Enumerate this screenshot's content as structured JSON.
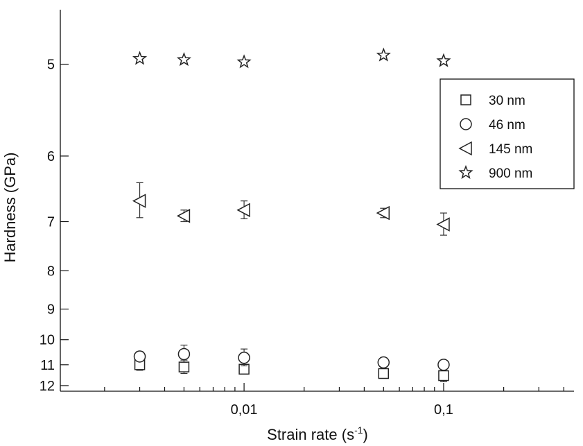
{
  "chart_data": {
    "type": "scatter",
    "title": "",
    "xlabel": {
      "base": "Strain rate (s",
      "sup": "-1",
      "close": ")"
    },
    "ylabel": "Hardness (GPa)",
    "x_scale": "log",
    "y_scale": "reciprocal",
    "xlim": [
      0.0012,
      0.45
    ],
    "ylim": [
      4.55,
      12.3
    ],
    "x_major_ticks": [
      {
        "value": 0.01,
        "label": "0,01"
      },
      {
        "value": 0.1,
        "label": "0,1"
      }
    ],
    "x_minor_ticks": [
      0.002,
      0.003,
      0.004,
      0.005,
      0.006,
      0.007,
      0.008,
      0.009,
      0.02,
      0.03,
      0.04,
      0.05,
      0.06,
      0.07,
      0.08,
      0.09,
      0.2,
      0.3,
      0.4
    ],
    "y_ticks": [
      {
        "value": 5,
        "label": "5"
      },
      {
        "value": 6,
        "label": "6"
      },
      {
        "value": 7,
        "label": "7"
      },
      {
        "value": 8,
        "label": "8"
      },
      {
        "value": 9,
        "label": "9"
      },
      {
        "value": 10,
        "label": "10"
      },
      {
        "value": 11,
        "label": "11"
      },
      {
        "value": 12,
        "label": "12"
      }
    ],
    "grid": false,
    "legend_position": "right",
    "series": [
      {
        "name": "30 nm",
        "marker": "square",
        "points": [
          {
            "x": 0.003,
            "y": 11.0,
            "err": 0.25
          },
          {
            "x": 0.005,
            "y": 11.1,
            "err": 0.3
          },
          {
            "x": 0.01,
            "y": 11.2,
            "err": 0.2
          },
          {
            "x": 0.05,
            "y": 11.4,
            "err": 0.12
          },
          {
            "x": 0.1,
            "y": 11.5,
            "err": 0.3
          }
        ]
      },
      {
        "name": "46 nm",
        "marker": "circle",
        "points": [
          {
            "x": 0.003,
            "y": 10.65,
            "err": 0.2
          },
          {
            "x": 0.005,
            "y": 10.55,
            "err": 0.35
          },
          {
            "x": 0.01,
            "y": 10.7,
            "err": 0.35
          },
          {
            "x": 0.05,
            "y": 10.9,
            "err": 0.2
          },
          {
            "x": 0.1,
            "y": 11.0,
            "err": 0.1
          }
        ]
      },
      {
        "name": "145 nm",
        "marker": "triangle-left",
        "points": [
          {
            "x": 0.003,
            "y": 6.65,
            "err": 0.28
          },
          {
            "x": 0.005,
            "y": 6.9,
            "err": 0.1
          },
          {
            "x": 0.01,
            "y": 6.8,
            "err": 0.15
          },
          {
            "x": 0.05,
            "y": 6.85,
            "err": 0.08
          },
          {
            "x": 0.1,
            "y": 7.05,
            "err": 0.2
          }
        ]
      },
      {
        "name": "900 nm",
        "marker": "star",
        "points": [
          {
            "x": 0.003,
            "y": 4.95,
            "err": 0
          },
          {
            "x": 0.005,
            "y": 4.96,
            "err": 0
          },
          {
            "x": 0.01,
            "y": 4.98,
            "err": 0
          },
          {
            "x": 0.05,
            "y": 4.92,
            "err": 0
          },
          {
            "x": 0.1,
            "y": 4.97,
            "err": 0
          }
        ]
      }
    ]
  }
}
